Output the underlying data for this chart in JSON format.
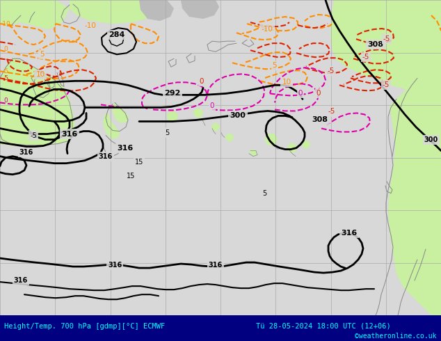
{
  "title_bottom": "Height/Temp. 700 hPa [gdmp][°C] ECMWF",
  "date_str": "Tü 28-05-2024 18:00 UTC (12+06)",
  "watermark": "©weatheronline.co.uk",
  "fig_width": 6.34,
  "fig_height": 4.9,
  "dpi": 100,
  "bg_ocean": "#d8d8d8",
  "bg_land_green": "#c8f0a0",
  "bg_land_gray": "#c8c8c8",
  "grid_color": "#aaaaaa",
  "coast_color": "#888888",
  "black_contour_color": "#000000",
  "orange_contour_color": "#ff8c00",
  "red_contour_color": "#dd2200",
  "magenta_contour_color": "#dd00aa",
  "bottom_bg": "#000080",
  "bottom_text": "#00ffff"
}
